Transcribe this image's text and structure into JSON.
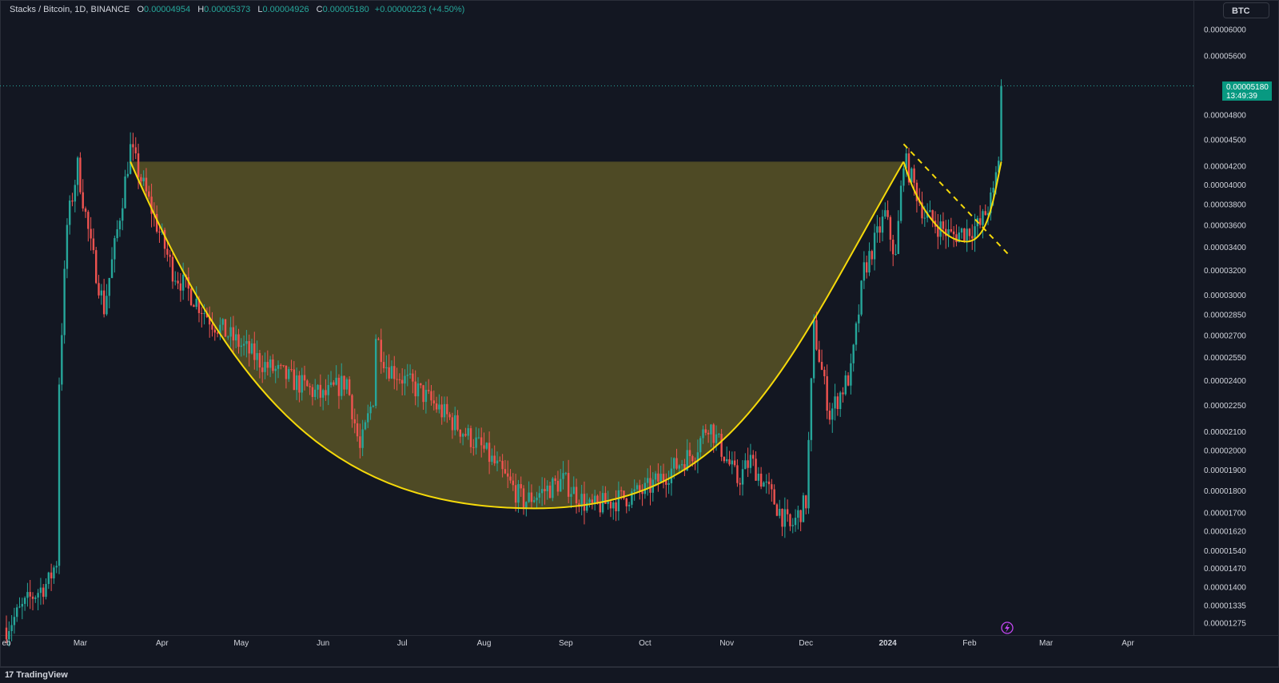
{
  "legend": {
    "symbol": "Stacks / Bitcoin, 1D, BINANCE",
    "o_label": "O",
    "o_value": "0.00004954",
    "h_label": "H",
    "h_value": "0.00005373",
    "l_label": "L",
    "l_value": "0.00004926",
    "c_label": "C",
    "c_value": "0.00005180",
    "change": "+0.00000223 (+4.50%)"
  },
  "currency_button": "BTC",
  "price_tag": {
    "price": "0.00005180",
    "countdown": "13:49:39"
  },
  "footer": {
    "logo": "17",
    "brand": "TradingView"
  },
  "colors": {
    "background": "#131722",
    "up": "#26a69a",
    "down": "#ef5350",
    "cup_line": "#f5d90a",
    "cup_fill": "rgba(128,117,40,0.55)",
    "price_tag": "#089981",
    "icon": "#c447f2"
  },
  "icons": {
    "flash": "lightning-bolt-icon"
  },
  "chart_data": {
    "type": "candlestick",
    "scale": "log",
    "y_ticks": [
      "0.00006000",
      "0.00005600",
      "0.00004800",
      "0.00004500",
      "0.00004200",
      "0.00004000",
      "0.00003800",
      "0.00003600",
      "0.00003400",
      "0.00003200",
      "0.00003000",
      "0.00002850",
      "0.00002700",
      "0.00002550",
      "0.00002400",
      "0.00002250",
      "0.00002100",
      "0.00002000",
      "0.00001900",
      "0.00001800",
      "0.00001700",
      "0.00001620",
      "0.00001540",
      "0.00001470",
      "0.00001400",
      "0.00001335",
      "0.00001275"
    ],
    "x_ticks": [
      {
        "label": "eb",
        "date": "2023-02-01"
      },
      {
        "label": "Mar",
        "date": "2023-03-01"
      },
      {
        "label": "Apr",
        "date": "2023-04-01"
      },
      {
        "label": "May",
        "date": "2023-05-01"
      },
      {
        "label": "Jun",
        "date": "2023-06-01"
      },
      {
        "label": "Jul",
        "date": "2023-07-01"
      },
      {
        "label": "Aug",
        "date": "2023-08-01"
      },
      {
        "label": "Sep",
        "date": "2023-09-01"
      },
      {
        "label": "Oct",
        "date": "2023-10-01"
      },
      {
        "label": "Nov",
        "date": "2023-11-01"
      },
      {
        "label": "Dec",
        "date": "2023-12-01"
      },
      {
        "label": "2024",
        "date": "2024-01-01",
        "bold": true
      },
      {
        "label": "Feb",
        "date": "2024-02-01"
      },
      {
        "label": "Mar",
        "date": "2024-03-01"
      },
      {
        "label": "Apr",
        "date": "2024-04-01"
      }
    ],
    "last_price": 5.18e-05,
    "key_prices": [
      {
        "date": "2023-02-01",
        "price": 1.26e-05
      },
      {
        "date": "2023-02-10",
        "price": 1.36e-05
      },
      {
        "date": "2023-02-17",
        "price": 1.42e-05
      },
      {
        "date": "2023-02-20",
        "price": 1.5e-05
      },
      {
        "date": "2023-02-21",
        "price": 2.4e-05
      },
      {
        "date": "2023-02-24",
        "price": 3.6e-05
      },
      {
        "date": "2023-02-28",
        "price": 4.2e-05
      },
      {
        "date": "2023-03-05",
        "price": 3.4e-05
      },
      {
        "date": "2023-03-10",
        "price": 2.9e-05
      },
      {
        "date": "2023-03-14",
        "price": 3.4e-05
      },
      {
        "date": "2023-03-20",
        "price": 4.4e-05
      },
      {
        "date": "2023-04-05",
        "price": 3.2e-05
      },
      {
        "date": "2023-04-20",
        "price": 2.8e-05
      },
      {
        "date": "2023-05-10",
        "price": 2.5e-05
      },
      {
        "date": "2023-06-01",
        "price": 2.3e-05
      },
      {
        "date": "2023-06-10",
        "price": 2.4e-05
      },
      {
        "date": "2023-06-15",
        "price": 2e-05
      },
      {
        "date": "2023-06-20",
        "price": 2.3e-05
      },
      {
        "date": "2023-06-21",
        "price": 2.7e-05
      },
      {
        "date": "2023-06-25",
        "price": 2.5e-05
      },
      {
        "date": "2023-07-10",
        "price": 2.3e-05
      },
      {
        "date": "2023-08-01",
        "price": 2e-05
      },
      {
        "date": "2023-08-16",
        "price": 1.75e-05
      },
      {
        "date": "2023-08-31",
        "price": 1.85e-05
      },
      {
        "date": "2023-09-10",
        "price": 1.72e-05
      },
      {
        "date": "2023-10-01",
        "price": 1.8e-05
      },
      {
        "date": "2023-10-20",
        "price": 2e-05
      },
      {
        "date": "2023-10-25",
        "price": 2.15e-05
      },
      {
        "date": "2023-11-05",
        "price": 1.85e-05
      },
      {
        "date": "2023-11-10",
        "price": 1.95e-05
      },
      {
        "date": "2023-11-25",
        "price": 1.63e-05
      },
      {
        "date": "2023-12-01",
        "price": 1.75e-05
      },
      {
        "date": "2023-12-04",
        "price": 2.75e-05
      },
      {
        "date": "2023-12-10",
        "price": 2.2e-05
      },
      {
        "date": "2023-12-18",
        "price": 2.45e-05
      },
      {
        "date": "2023-12-23",
        "price": 3.2e-05
      },
      {
        "date": "2023-12-31",
        "price": 3.7e-05
      },
      {
        "date": "2024-01-04",
        "price": 3.3e-05
      },
      {
        "date": "2024-01-07",
        "price": 4.3e-05
      },
      {
        "date": "2024-01-15",
        "price": 3.7e-05
      },
      {
        "date": "2024-01-25",
        "price": 3.5e-05
      },
      {
        "date": "2024-02-05",
        "price": 3.6e-05
      },
      {
        "date": "2024-02-10",
        "price": 3.9e-05
      },
      {
        "date": "2024-02-12",
        "price": 4.3e-05
      },
      {
        "date": "2024-02-13",
        "price": 5.18e-05
      }
    ],
    "cup": {
      "rim_start": {
        "date": "2023-03-20",
        "price": 4.25e-05
      },
      "bottom": {
        "date": "2023-08-20",
        "price": 1.72e-05
      },
      "rim_end": {
        "date": "2024-01-07",
        "price": 4.25e-05
      }
    },
    "handle": {
      "start": {
        "date": "2024-01-07",
        "price": 4.25e-05
      },
      "bottom": {
        "date": "2024-01-31",
        "price": 3.45e-05
      },
      "end": {
        "date": "2024-02-13",
        "price": 4.25e-05
      }
    },
    "trendline": {
      "start": {
        "date": "2024-01-07",
        "price": 4.45e-05
      },
      "end": {
        "date": "2024-02-16",
        "price": 3.33e-05
      }
    }
  }
}
